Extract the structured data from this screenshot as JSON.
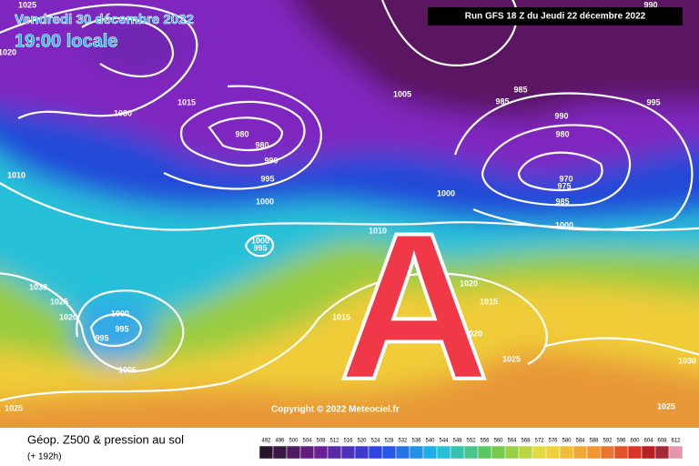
{
  "header": {
    "date": "Vendredi 30 décembre 2022",
    "time": "19:00 locale",
    "run": "Run GFS 18 Z du Jeudi 22 décembre 2022"
  },
  "map": {
    "marker": "A",
    "copyright": "Copyright © 2022 Meteociel.fr",
    "isobar_labels": [
      "1025",
      "1020",
      "1030",
      "1015",
      "1005",
      "985",
      "985",
      "990",
      "995",
      "980",
      "980",
      "990",
      "995",
      "1000",
      "970",
      "975",
      "980",
      "985",
      "1000",
      "1000",
      "1010",
      "1000",
      "995",
      "1010",
      "1030",
      "1025",
      "1020",
      "1000",
      "995",
      "995",
      "1005",
      "1015",
      "1020",
      "1015",
      "1020",
      "1025",
      "1030",
      "1025",
      "1025",
      "990"
    ]
  },
  "footer": {
    "title": "Géop. Z500 & pression au sol",
    "lead": "(+ 192h)",
    "scale": [
      492,
      496,
      500,
      504,
      508,
      512,
      516,
      520,
      524,
      528,
      532,
      536,
      540,
      544,
      548,
      552,
      556,
      560,
      564,
      568,
      572,
      576,
      580,
      584,
      588,
      592,
      596,
      600,
      604,
      608,
      612
    ]
  }
}
